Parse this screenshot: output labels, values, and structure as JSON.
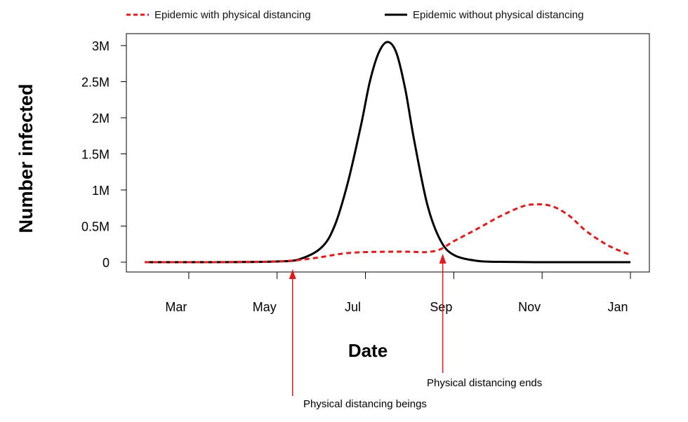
{
  "chart_data": {
    "type": "line",
    "title": "",
    "xlabel": "Date",
    "ylabel": "Number infected",
    "x_tick_labels": [
      "Mar",
      "May",
      "Jul",
      "Sep",
      "Nov",
      "Jan"
    ],
    "x_tick_months": [
      1,
      3,
      5,
      7,
      9,
      11
    ],
    "y_ticks": [
      0,
      500000,
      1000000,
      1500000,
      2000000,
      2500000,
      3000000
    ],
    "y_tick_labels": [
      "0",
      "0.5M",
      "1M",
      "1.5M",
      "2M",
      "2.5M",
      "3M"
    ],
    "xlim_months": [
      -0.2,
      11.8
    ],
    "ylim": [
      -100000,
      3200000
    ],
    "grid": false,
    "legend_position": "top",
    "colors": {
      "with_distancing": "#e31a1c",
      "without_distancing": "#000000",
      "annotation": "#e31a1c"
    },
    "series": [
      {
        "name": "Epidemic with physical distancing",
        "style": "dashed",
        "x_months": [
          0.0,
          1.0,
          2.0,
          3.0,
          3.3,
          3.5,
          4.0,
          4.5,
          5.0,
          5.5,
          6.0,
          6.4,
          6.7,
          7.0,
          7.5,
          8.0,
          8.5,
          8.8,
          9.2,
          9.6,
          10.0,
          10.5,
          11.0
        ],
        "y": [
          0,
          0,
          2000,
          10000,
          20000,
          30000,
          70000,
          120000,
          140000,
          145000,
          145000,
          140000,
          180000,
          290000,
          450000,
          620000,
          760000,
          800000,
          780000,
          650000,
          430000,
          230000,
          100000
        ]
      },
      {
        "name": "Epidemic without physical distancing",
        "style": "solid",
        "x_months": [
          0.0,
          1.0,
          2.0,
          3.0,
          3.5,
          4.0,
          4.3,
          4.6,
          4.9,
          5.1,
          5.3,
          5.5,
          5.7,
          5.9,
          6.1,
          6.4,
          6.7,
          7.0,
          7.5,
          8.0,
          9.0,
          10.0,
          11.0
        ],
        "y": [
          0,
          0,
          1000,
          10000,
          40000,
          200000,
          500000,
          1100000,
          1900000,
          2500000,
          2900000,
          3050000,
          2900000,
          2400000,
          1700000,
          800000,
          300000,
          100000,
          20000,
          5000,
          0,
          0,
          0
        ]
      }
    ],
    "annotations": [
      {
        "text": "Physical distancing beings",
        "x_month": 3.35,
        "y": 0
      },
      {
        "text": "Physical distancing ends",
        "x_month": 6.75,
        "y": 0
      }
    ]
  }
}
